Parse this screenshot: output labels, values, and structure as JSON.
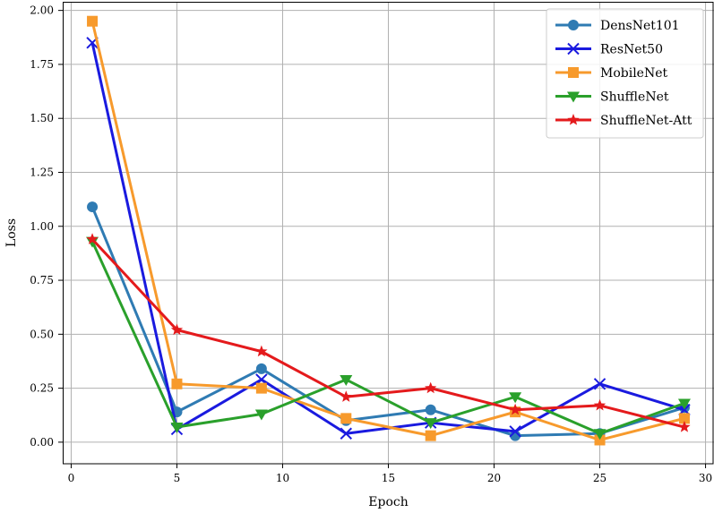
{
  "chart_data": {
    "type": "line",
    "title": "",
    "xlabel": "Epoch",
    "ylabel": "Loss",
    "xlim": [
      -0.4,
      30.4
    ],
    "ylim": [
      -0.1,
      2.04
    ],
    "xticks": [
      0,
      5,
      10,
      15,
      20,
      25,
      30
    ],
    "xtick_labels": [
      "0",
      "5",
      "10",
      "15",
      "20",
      "25",
      "30"
    ],
    "yticks": [
      0.0,
      0.25,
      0.5,
      0.75,
      1.0,
      1.25,
      1.5,
      1.75,
      2.0
    ],
    "ytick_labels": [
      "0.00",
      "0.25",
      "0.50",
      "0.75",
      "1.00",
      "1.25",
      "1.50",
      "1.75",
      "2.00"
    ],
    "grid": true,
    "legend_position": "top-right",
    "x": [
      1,
      5,
      9,
      13,
      17,
      21,
      25,
      29
    ],
    "series": [
      {
        "name": "DensNet101",
        "color": "#2f7bb3",
        "marker": "circle",
        "values": [
          1.09,
          0.14,
          0.34,
          0.1,
          0.15,
          0.03,
          0.04,
          0.16
        ]
      },
      {
        "name": "ResNet50",
        "color": "#1a1adf",
        "marker": "x",
        "values": [
          1.85,
          0.06,
          0.29,
          0.04,
          0.09,
          0.05,
          0.27,
          0.15
        ]
      },
      {
        "name": "MobileNet",
        "color": "#f79a2c",
        "marker": "square",
        "values": [
          1.95,
          0.27,
          0.25,
          0.11,
          0.03,
          0.14,
          0.01,
          0.11
        ]
      },
      {
        "name": "ShuffleNet",
        "color": "#2aa02b",
        "marker": "triangle-down",
        "values": [
          0.93,
          0.07,
          0.13,
          0.29,
          0.09,
          0.21,
          0.04,
          0.18
        ]
      },
      {
        "name": "ShuffleNet-Att",
        "color": "#e41a1c",
        "marker": "star",
        "values": [
          0.94,
          0.52,
          0.42,
          0.21,
          0.25,
          0.15,
          0.17,
          0.07
        ]
      }
    ]
  }
}
